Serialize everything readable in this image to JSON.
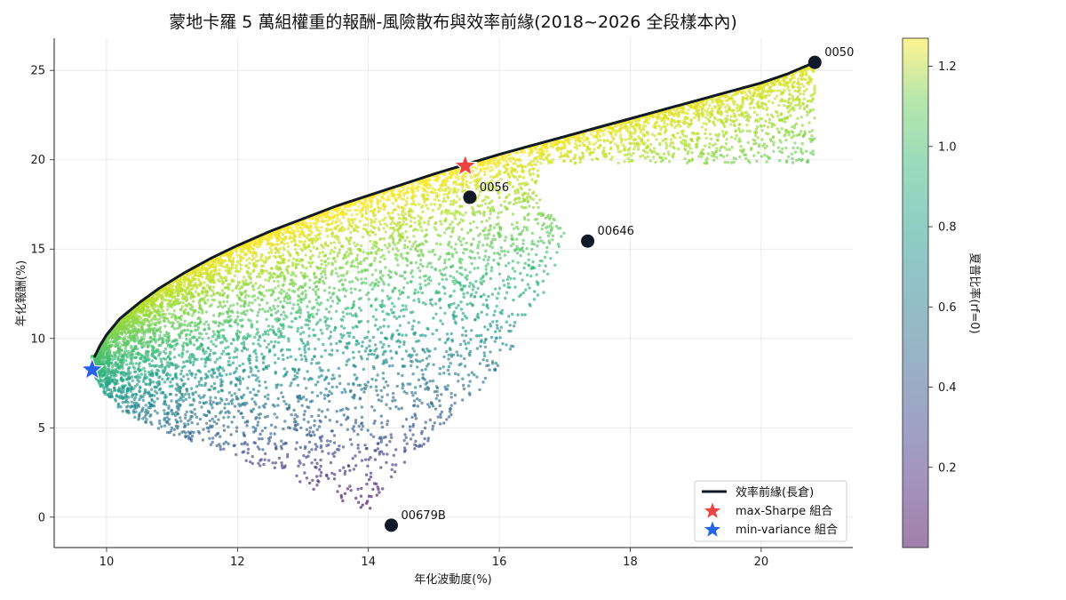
{
  "chart_data": {
    "type": "scatter",
    "title": "蒙地卡羅 5 萬組權重的報酬-風險散布與效率前緣(2018~2026 全段樣本內)",
    "xlabel": "年化波動度(%)",
    "ylabel": "年化報酬(%)",
    "xlim": [
      9.2,
      21.4
    ],
    "ylim": [
      -1.7,
      26.8
    ],
    "xticks": [
      10,
      12,
      14,
      16,
      18,
      20
    ],
    "yticks": [
      0,
      5,
      10,
      15,
      20,
      25
    ],
    "grid": true,
    "legend_position": "lower-right",
    "colorbar": {
      "label": "夏普比率(rf=0)",
      "colormap": "viridis",
      "alpha": 0.5,
      "range": [
        0.0,
        1.27
      ],
      "ticks": [
        0.2,
        0.4,
        0.6,
        0.8,
        1.0,
        1.2
      ]
    },
    "simulation": {
      "n_portfolios": 50000,
      "description_shown": "5 萬組權重"
    },
    "frontier": {
      "name": "效率前緣(長倉)",
      "color": "#111827",
      "points": [
        [
          9.82,
          9.0
        ],
        [
          9.9,
          9.6
        ],
        [
          10.0,
          10.2
        ],
        [
          10.2,
          11.1
        ],
        [
          10.5,
          12.0
        ],
        [
          10.8,
          12.8
        ],
        [
          11.2,
          13.7
        ],
        [
          11.6,
          14.5
        ],
        [
          12.0,
          15.2
        ],
        [
          12.5,
          16.0
        ],
        [
          13.0,
          16.7
        ],
        [
          13.5,
          17.4
        ],
        [
          14.0,
          18.0
        ],
        [
          14.5,
          18.6
        ],
        [
          15.0,
          19.2
        ],
        [
          15.5,
          19.75
        ],
        [
          16.0,
          20.3
        ],
        [
          16.5,
          20.8
        ],
        [
          17.0,
          21.3
        ],
        [
          17.5,
          21.8
        ],
        [
          18.0,
          22.3
        ],
        [
          18.5,
          22.8
        ],
        [
          19.0,
          23.3
        ],
        [
          19.5,
          23.8
        ],
        [
          20.0,
          24.3
        ],
        [
          20.4,
          24.8
        ],
        [
          20.82,
          25.45
        ]
      ]
    },
    "assets": [
      {
        "label": "0050",
        "x": 20.82,
        "y": 25.45
      },
      {
        "label": "0056",
        "x": 15.55,
        "y": 17.9
      },
      {
        "label": "00646",
        "x": 17.35,
        "y": 15.45
      },
      {
        "label": "00679B",
        "x": 14.35,
        "y": -0.45
      }
    ],
    "special_points": [
      {
        "name": "max-Sharpe 組合",
        "x": 15.48,
        "y": 19.65,
        "color": "#ef4444",
        "marker": "star"
      },
      {
        "name": "min-variance 組合",
        "x": 9.78,
        "y": 8.25,
        "color": "#2563eb",
        "marker": "star"
      }
    ],
    "scatter_color_rule": "colored by sharpe = return / volatility",
    "cloud_shape": {
      "upper_edge": "efficient frontier",
      "lower_edge": [
        [
          9.78,
          8.2
        ],
        [
          9.95,
          7.0
        ],
        [
          10.2,
          6.0
        ],
        [
          10.6,
          5.2
        ],
        [
          11.0,
          4.6
        ],
        [
          11.5,
          4.0
        ],
        [
          12.0,
          3.3
        ],
        [
          12.5,
          2.6
        ],
        [
          13.0,
          1.8
        ],
        [
          13.5,
          1.0
        ],
        [
          14.0,
          0.3
        ]
      ],
      "right_edge": [
        [
          14.0,
          0.3
        ],
        [
          14.3,
          2.0
        ],
        [
          15.0,
          4.5
        ],
        [
          15.8,
          7.5
        ],
        [
          16.5,
          11.0
        ],
        [
          16.9,
          14.5
        ],
        [
          17.0,
          16.0
        ],
        [
          16.6,
          18.0
        ],
        [
          16.6,
          19.8
        ]
      ]
    }
  }
}
